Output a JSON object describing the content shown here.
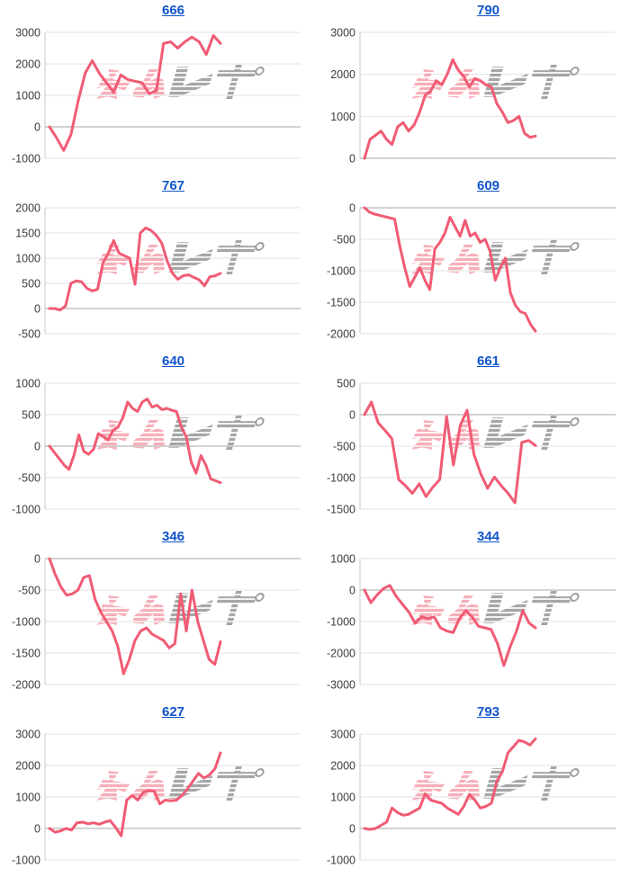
{
  "page": {
    "background": "#ffffff"
  },
  "style": {
    "line_color": "#f15b74",
    "grid_color": "#e3e3e3",
    "zero_line_color": "#a6a6a6",
    "axis_color": "#c9c9c9",
    "tick_color": "#3c3c3c",
    "title_color": "#1155cc"
  },
  "watermark": {
    "pink_text": "みん",
    "gray_text": "レポ",
    "pink_color": "#ee5f73",
    "gray_color": "#969696"
  },
  "chart_data": [
    {
      "type": "line",
      "title": "666",
      "ylim": [
        -1000,
        3000
      ],
      "yticks": [
        3000,
        2000,
        1000,
        0,
        -1000
      ],
      "values": [
        0,
        -350,
        -750,
        -250,
        800,
        1700,
        2100,
        1700,
        1400,
        1100,
        1650,
        1500,
        1450,
        1400,
        1050,
        1150,
        2650,
        2700,
        2500,
        2700,
        2850,
        2700,
        2300,
        2900,
        2650
      ]
    },
    {
      "type": "line",
      "title": "790",
      "ylim": [
        0,
        3000
      ],
      "yticks": [
        3000,
        2000,
        1000,
        0
      ],
      "values": [
        0,
        450,
        550,
        650,
        450,
        330,
        750,
        850,
        650,
        800,
        1100,
        1500,
        1600,
        1850,
        1750,
        2000,
        2350,
        2100,
        1950,
        1700,
        1900,
        1850,
        1750,
        1700,
        1300,
        1100,
        850,
        900,
        1000,
        600,
        500,
        530
      ]
    },
    {
      "type": "line",
      "title": "767",
      "ylim": [
        -500,
        2000
      ],
      "yticks": [
        2000,
        1500,
        1000,
        500,
        0,
        -500
      ],
      "values": [
        0,
        0,
        -30,
        50,
        500,
        550,
        530,
        400,
        350,
        380,
        900,
        1100,
        1350,
        1100,
        1050,
        1000,
        480,
        1500,
        1600,
        1550,
        1450,
        1300,
        950,
        700,
        580,
        650,
        670,
        620,
        570,
        450,
        630,
        650,
        700
      ]
    },
    {
      "type": "line",
      "title": "609",
      "ylim": [
        -2000,
        0
      ],
      "yticks": [
        0,
        -500,
        -1000,
        -1500,
        -2000
      ],
      "values": [
        0,
        -70,
        -100,
        -120,
        -140,
        -160,
        -180,
        -600,
        -950,
        -1250,
        -1100,
        -950,
        -1150,
        -1300,
        -650,
        -550,
        -400,
        -150,
        -300,
        -450,
        -200,
        -450,
        -400,
        -550,
        -500,
        -700,
        -1150,
        -950,
        -800,
        -1350,
        -1550,
        -1650,
        -1680,
        -1850,
        -1960
      ]
    },
    {
      "type": "line",
      "title": "640",
      "ylim": [
        -1000,
        1000
      ],
      "yticks": [
        1000,
        500,
        0,
        -500,
        -1000
      ],
      "values": [
        0,
        -100,
        -200,
        -300,
        -370,
        -150,
        180,
        -80,
        -130,
        -50,
        200,
        150,
        100,
        250,
        300,
        450,
        700,
        600,
        550,
        700,
        750,
        620,
        650,
        580,
        600,
        570,
        550,
        300,
        150,
        -250,
        -430,
        -150,
        -300,
        -520,
        -550,
        -580
      ]
    },
    {
      "type": "line",
      "title": "661",
      "ylim": [
        -1500,
        500
      ],
      "yticks": [
        500,
        0,
        -500,
        -1000,
        -1500
      ],
      "values": [
        0,
        200,
        -130,
        -250,
        -380,
        -1030,
        -1130,
        -1250,
        -1100,
        -1300,
        -1150,
        -1030,
        -30,
        -800,
        -170,
        70,
        -630,
        -940,
        -1170,
        -990,
        -1130,
        -1250,
        -1400,
        -440,
        -410,
        -490
      ]
    },
    {
      "type": "line",
      "title": "346",
      "ylim": [
        -2000,
        0
      ],
      "yticks": [
        0,
        -500,
        -1000,
        -1500,
        -2000
      ],
      "values": [
        0,
        -250,
        -450,
        -580,
        -560,
        -500,
        -300,
        -270,
        -650,
        -850,
        -1000,
        -1150,
        -1400,
        -1830,
        -1600,
        -1300,
        -1150,
        -1100,
        -1200,
        -1250,
        -1300,
        -1420,
        -1350,
        -560,
        -1150,
        -500,
        -1000,
        -1300,
        -1600,
        -1680,
        -1320
      ]
    },
    {
      "type": "line",
      "title": "344",
      "ylim": [
        -3000,
        1000
      ],
      "yticks": [
        1000,
        0,
        -1000,
        -2000,
        -3000
      ],
      "values": [
        0,
        -400,
        -150,
        50,
        150,
        -200,
        -450,
        -700,
        -1050,
        -850,
        -900,
        -850,
        -1200,
        -1300,
        -1350,
        -900,
        -650,
        -850,
        -1150,
        -1200,
        -1250,
        -1700,
        -2400,
        -1800,
        -1300,
        -650,
        -1050,
        -1200
      ]
    },
    {
      "type": "line",
      "title": "627",
      "ylim": [
        -1000,
        3000
      ],
      "yticks": [
        3000,
        2000,
        1000,
        0,
        -1000
      ],
      "values": [
        0,
        -120,
        -80,
        0,
        -50,
        180,
        200,
        150,
        180,
        130,
        200,
        250,
        30,
        -230,
        900,
        1050,
        900,
        1150,
        1200,
        1180,
        780,
        900,
        880,
        900,
        1050,
        1250,
        1500,
        1750,
        1600,
        1700,
        1900,
        2400
      ]
    },
    {
      "type": "line",
      "title": "793",
      "ylim": [
        -1000,
        3000
      ],
      "yticks": [
        3000,
        2000,
        1000,
        0,
        -1000
      ],
      "values": [
        0,
        -30,
        0,
        100,
        200,
        650,
        500,
        420,
        450,
        550,
        650,
        1100,
        900,
        850,
        800,
        650,
        550,
        450,
        700,
        1080,
        900,
        650,
        700,
        800,
        1500,
        1800,
        2400,
        2600,
        2800,
        2750,
        2650,
        2850
      ]
    }
  ]
}
